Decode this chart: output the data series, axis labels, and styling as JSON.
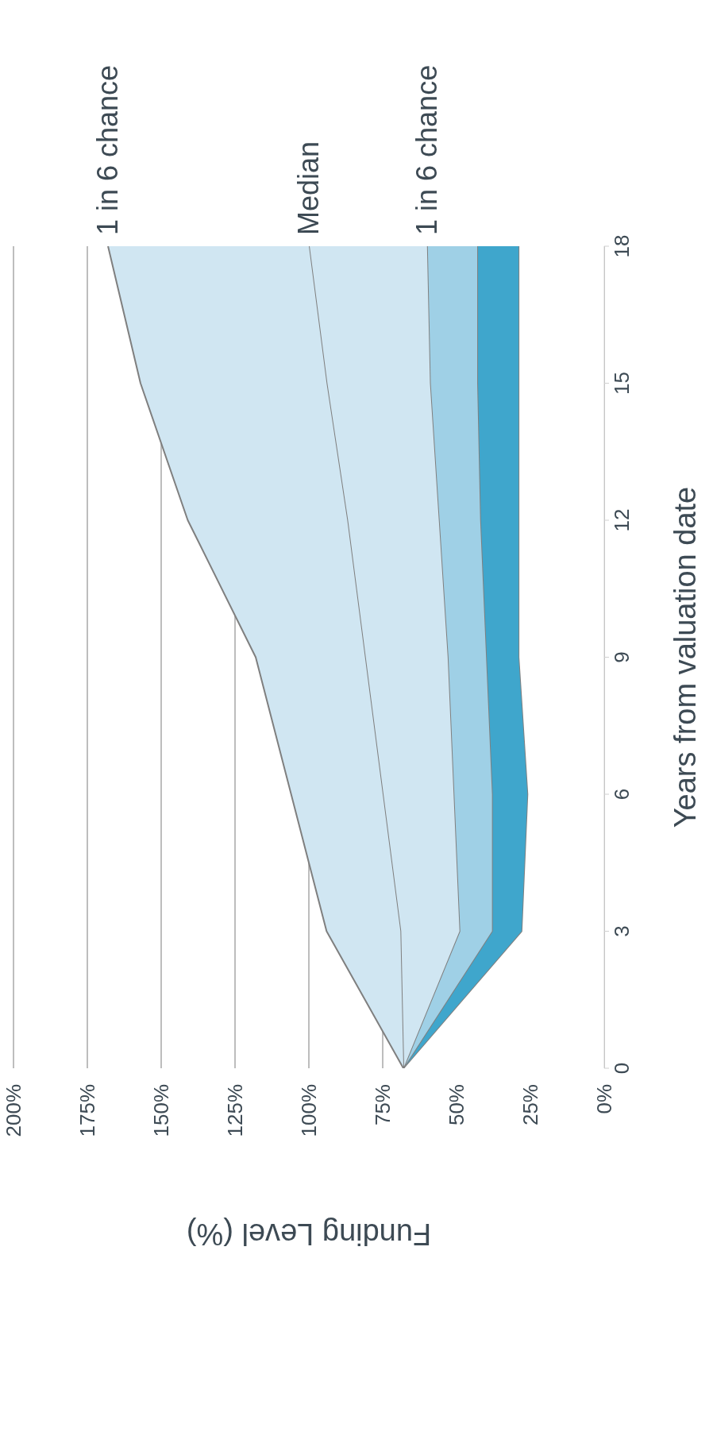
{
  "chart_data": {
    "type": "area",
    "stacked": true,
    "orientation": "horizontal",
    "xlabel": "Funding Level (%)",
    "ylabel": "Years from valuation date",
    "x": [
      0,
      3,
      6,
      9,
      12,
      15,
      18
    ],
    "series": [
      {
        "color": "#ffffff",
        "values": [
          68,
          28,
          26,
          29,
          29,
          29,
          29
        ]
      },
      {
        "color": "#3fa6cc",
        "values": [
          0,
          10,
          12,
          11,
          13,
          14,
          14
        ]
      },
      {
        "name": "1 in 6 chance",
        "color": "#9fd0e6",
        "values": [
          0,
          11,
          13,
          13,
          14,
          16,
          17
        ]
      },
      {
        "name": "Median",
        "color": "#d0e6f2",
        "values": [
          0,
          20,
          24,
          28,
          31,
          35,
          40
        ]
      },
      {
        "name": "1 in 6 chance",
        "color": "#d0e6f2",
        "values": [
          0,
          25,
          31,
          37,
          54,
          63,
          68
        ]
      }
    ],
    "ylim": [
      0,
      18
    ],
    "yticks": [
      0,
      3,
      6,
      9,
      12,
      15,
      18
    ],
    "xlim": [
      200,
      0
    ],
    "xticks": [
      {
        "value": 200,
        "label": "200%"
      },
      {
        "value": 175,
        "label": "175%"
      },
      {
        "value": 150,
        "label": "150%"
      },
      {
        "value": 125,
        "label": "125%"
      },
      {
        "value": 100,
        "label": "100%"
      },
      {
        "value": 75,
        "label": "75%"
      },
      {
        "value": 50,
        "label": "50%"
      },
      {
        "value": 25,
        "label": "25%"
      },
      {
        "value": 0,
        "label": "0%"
      }
    ],
    "grid": "x",
    "legend": false
  }
}
